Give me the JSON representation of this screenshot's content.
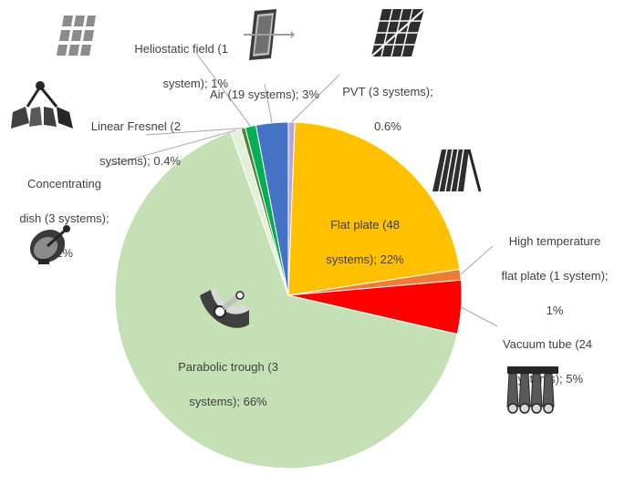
{
  "chart_data": {
    "type": "pie",
    "title": "",
    "slices": [
      {
        "name": "PVT (3 systems)",
        "systems": 3,
        "value": 0.6,
        "label_lines": [
          "PVT (3 systems);",
          "0.6%"
        ],
        "color": "#b4a7d6",
        "icon": "pvt-panel-icon"
      },
      {
        "name": "Flat plate (48 systems)",
        "systems": 48,
        "value": 22,
        "label_lines": [
          "Flat plate (48",
          "systems); 22%"
        ],
        "color": "#ffc000",
        "icon": "flat-plate-collector-icon"
      },
      {
        "name": "High temperature flat plate (1 system)",
        "systems": 1,
        "value": 1,
        "label_lines": [
          "High temperature",
          "flat plate (1 system);",
          "1%"
        ],
        "color": "#ed7d31",
        "icon": ""
      },
      {
        "name": "Vacuum tube (24 systems)",
        "systems": 24,
        "value": 5,
        "label_lines": [
          "Vacuum tube (24",
          "systems); 5%"
        ],
        "color": "#ff0000",
        "icon": "vacuum-tube-collector-icon"
      },
      {
        "name": "Parabolic trough (3 systems)",
        "systems": 3,
        "value": 66,
        "label_lines": [
          "Parabolic trough (3",
          "systems); 66%"
        ],
        "color": "#c5e0b4",
        "icon": "parabolic-trough-icon"
      },
      {
        "name": "Concentrating dish (3 systems)",
        "systems": 3,
        "value": 1,
        "label_lines": [
          "Concentrating",
          "dish (3 systems);",
          "1%"
        ],
        "color": "#e2f0d9",
        "icon": "concentrating-dish-icon"
      },
      {
        "name": "Linear Fresnel (2 systems)",
        "systems": 2,
        "value": 0.4,
        "label_lines": [
          "Linear Fresnel (2",
          "systems); 0.4%"
        ],
        "color": "#548235",
        "icon": "linear-fresnel-icon"
      },
      {
        "name": "Heliostatic field (1 system)",
        "systems": 1,
        "value": 1,
        "label_lines": [
          "Heliostatic field (1",
          "system); 1%"
        ],
        "color": "#00b050",
        "icon": "heliostat-field-icon"
      },
      {
        "name": "Air (19 systems)",
        "systems": 19,
        "value": 3,
        "label_lines": [
          "Air (19 systems); 3%"
        ],
        "color": "#4472c4",
        "icon": "air-collector-icon"
      }
    ],
    "legend": "none",
    "start_angle_deg": 0,
    "direction": "clockwise"
  },
  "colors": {
    "leader_line": "#a6a6a6",
    "label_text": "#404040",
    "slice_border": "#ffffff"
  }
}
